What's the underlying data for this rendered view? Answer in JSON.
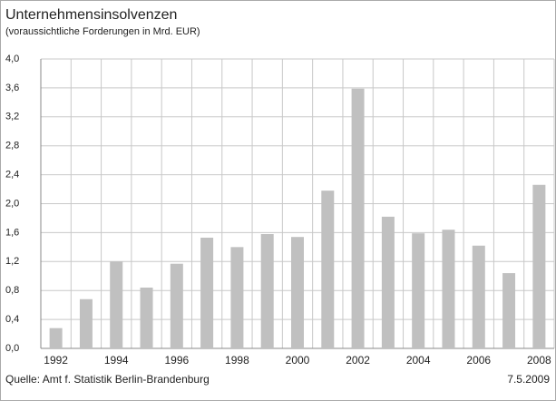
{
  "chart_data": {
    "type": "bar",
    "title": "Unternehmensinsolvenzen",
    "subtitle": "(voraussichtliche Forderungen in Mrd. EUR)",
    "source": "Quelle: Amt f. Statistik Berlin-Brandenburg",
    "date": "7.5.2009",
    "categories": [
      "1992",
      null,
      "1994",
      null,
      "1996",
      null,
      "1998",
      null,
      "2000",
      null,
      "2002",
      null,
      "2004",
      null,
      "2006",
      null,
      "2008"
    ],
    "values": [
      0.28,
      0.68,
      1.2,
      0.84,
      1.17,
      1.53,
      1.4,
      1.58,
      1.54,
      2.18,
      3.59,
      1.82,
      1.59,
      1.64,
      1.42,
      1.04,
      2.26
    ],
    "color": "#c0c0c0",
    "ylim": [
      0,
      4
    ],
    "yticks": [
      {
        "value": 0,
        "label": "0,0"
      },
      {
        "value": 0.4,
        "label": "0,4"
      },
      {
        "value": 0.8,
        "label": "0,8"
      },
      {
        "value": 1.2,
        "label": "1,2"
      },
      {
        "value": 1.6,
        "label": "1,6"
      },
      {
        "value": 2.0,
        "label": "2,0"
      },
      {
        "value": 2.4,
        "label": "2,4"
      },
      {
        "value": 2.8,
        "label": "2,8"
      },
      {
        "value": 3.2,
        "label": "3,2"
      },
      {
        "value": 3.6,
        "label": "3,6"
      },
      {
        "value": 4.0,
        "label": "4,0"
      }
    ],
    "grid": true
  }
}
